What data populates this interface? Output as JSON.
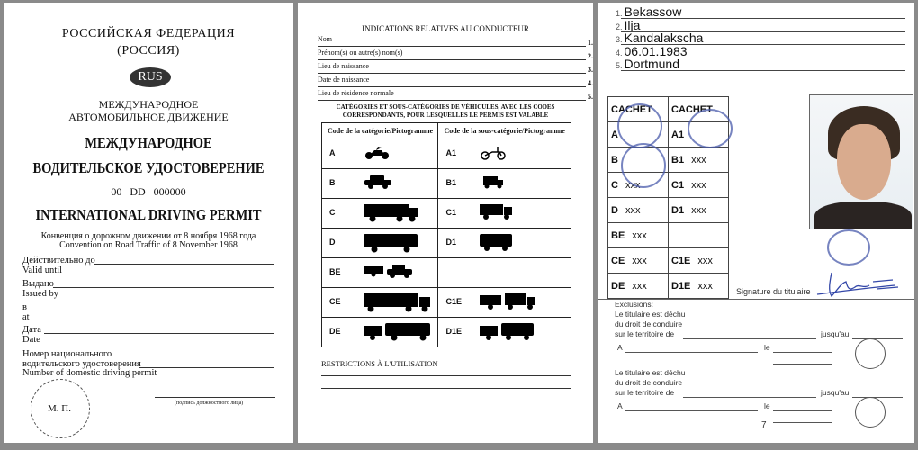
{
  "left_page": {
    "country_ru": "РОССИЙСКАЯ ФЕДЕРАЦИЯ",
    "country_short": "(РОССИЯ)",
    "country_code": "RUS",
    "subtitle_line1": "МЕЖДУНАРОДНОЕ",
    "subtitle_line2": "АВТОМОБИЛЬНОЕ ДВИЖЕНИЕ",
    "title_ru_line1": "МЕЖДУНАРОДНОЕ",
    "title_ru_line2": "ВОДИТЕЛЬСКОЕ УДОСТОВЕРЕНИЕ",
    "serial": "00   DD   000000",
    "title_en": "INTERNATIONAL DRIVING PERMIT",
    "convention_ru": "Конвенция о дорожном движении от 8 ноября 1968 года",
    "convention_en": "Convention on Road Traffic of 8 November 1968",
    "fields": [
      {
        "ru": "Действительно до",
        "en": "Valid until"
      },
      {
        "ru": "Выдано",
        "en": "Issued by"
      },
      {
        "ru": "в",
        "en": "at"
      },
      {
        "ru": "Дата",
        "en": "Date"
      },
      {
        "ru": "Номер национального",
        "ru2": "водительского удостоверения",
        "en": "Number of domestic driving permit"
      }
    ],
    "seal_label": "М. П.",
    "signature_caption": "(подпись должностного лица)"
  },
  "middle_page": {
    "heading": "INDICATIONS RELATIVES AU CONDUCTEUR",
    "fields": [
      {
        "label": "Nom",
        "num": "1."
      },
      {
        "label": "Prénom(s) ou autre(s) nom(s)",
        "num": "2."
      },
      {
        "label": "Lieu de naissance",
        "num": "3."
      },
      {
        "label": "Date de naissance",
        "num": "4."
      },
      {
        "label": "Lieu de résidence normale",
        "num": "5."
      }
    ],
    "categories_heading_1": "CATÉGORIES ET SOUS-CATÉGORIES DE VÉHICULES, AVEC LES CODES",
    "categories_heading_2": "CORRESPONDANTS, POUR LESQUELLES LE PERMIS EST VALABLE",
    "col1": "Code de la catégorie/Pictogramme",
    "col2": "Code de la sous-catégorie/Pictogramme",
    "rows": [
      {
        "cat": "A",
        "cat_icon": "motorcycle-icon",
        "sub": "A1",
        "sub_icon": "moped-icon"
      },
      {
        "cat": "B",
        "cat_icon": "car-icon",
        "sub": "B1",
        "sub_icon": "small-van-icon"
      },
      {
        "cat": "C",
        "cat_icon": "truck-icon",
        "sub": "C1",
        "sub_icon": "small-truck-icon"
      },
      {
        "cat": "D",
        "cat_icon": "bus-icon",
        "sub": "D1",
        "sub_icon": "minibus-icon"
      },
      {
        "cat": "BE",
        "cat_icon": "car-trailer-icon",
        "sub": "",
        "sub_icon": ""
      },
      {
        "cat": "CE",
        "cat_icon": "truck-trailer-icon",
        "sub": "C1E",
        "sub_icon": "small-truck-trailer-icon"
      },
      {
        "cat": "DE",
        "cat_icon": "bus-trailer-icon",
        "sub": "D1E",
        "sub_icon": "minibus-trailer-icon"
      }
    ],
    "restrictions": "RESTRICTIONS À L'UTILISATION"
  },
  "right_page": {
    "holder": [
      {
        "num": "1.",
        "value": "Bekassow"
      },
      {
        "num": "2.",
        "value": "Ilja"
      },
      {
        "num": "3.",
        "value": "Kandalakscha"
      },
      {
        "num": "4.",
        "value": "06.01.1983"
      },
      {
        "num": "5.",
        "value": "Dortmund"
      }
    ],
    "cachet": "CACHET",
    "grid": [
      [
        "A",
        ""
      ],
      [
        "A1",
        ""
      ],
      [
        "B",
        ""
      ],
      [
        "B1",
        "xxx"
      ],
      [
        "C",
        "xxx"
      ],
      [
        "C1",
        "xxx"
      ],
      [
        "D",
        "xxx"
      ],
      [
        "D1",
        "xxx"
      ],
      [
        "BE",
        "xxx"
      ],
      [
        "",
        ""
      ],
      [
        "CE",
        "xxx"
      ],
      [
        "C1E",
        "xxx"
      ],
      [
        "DE",
        "xxx"
      ],
      [
        "D1E",
        "xxx"
      ]
    ],
    "signature_label": "Signature du titulaire",
    "exclusions": "Exclusions:",
    "excl_text_1": "Le titulaire est déchu",
    "excl_text_2": "du droit de conduire",
    "excl_text_3": "sur le territoire de",
    "until": "jusqu'au",
    "at": "A",
    "on": "le",
    "page_number": "7",
    "stamp_color": "#4a5bab"
  }
}
